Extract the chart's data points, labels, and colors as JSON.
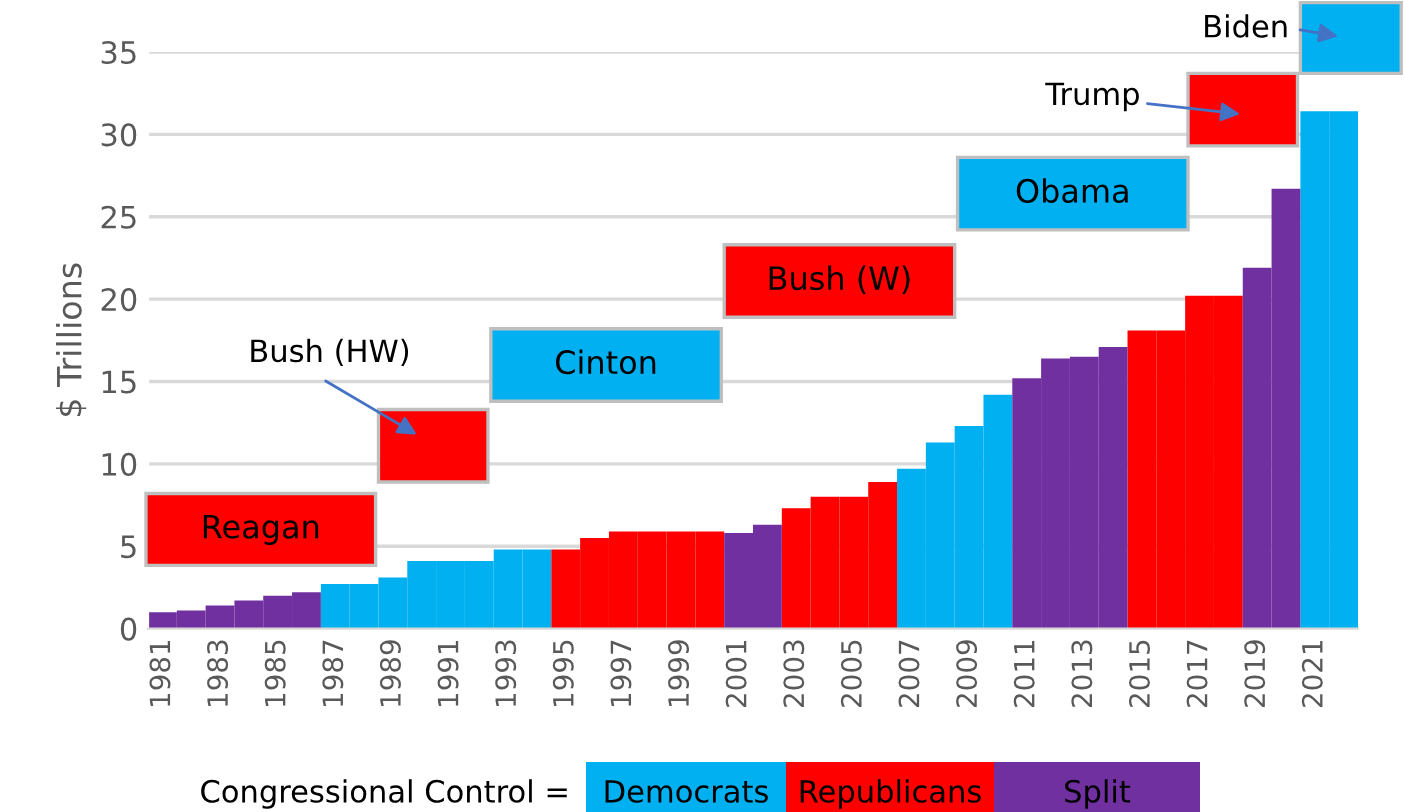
{
  "chart_data": {
    "type": "bar",
    "ylabel": "$ Trillions",
    "categories": [
      "1981",
      null,
      "1983",
      null,
      "1985",
      null,
      "1987",
      null,
      "1989",
      null,
      "1991",
      null,
      "1993",
      null,
      "1995",
      null,
      "1997",
      null,
      "1999",
      null,
      "2001",
      null,
      "2003",
      null,
      "2005",
      null,
      "2007",
      null,
      "2009",
      null,
      "2011",
      null,
      "2013",
      null,
      "2015",
      null,
      "2017",
      null,
      "2019",
      null,
      "2021",
      null
    ],
    "series": [
      {
        "name": "Democrats",
        "color": "#00b0f0",
        "values": [
          null,
          null,
          null,
          null,
          null,
          null,
          2.7,
          2.7,
          3.1,
          4.1,
          4.1,
          4.1,
          4.8,
          4.8,
          null,
          null,
          null,
          null,
          null,
          null,
          null,
          null,
          null,
          null,
          null,
          null,
          9.7,
          11.3,
          12.3,
          14.2,
          null,
          null,
          null,
          null,
          null,
          null,
          null,
          null,
          null,
          null,
          31.4,
          31.4
        ]
      },
      {
        "name": "Republicans",
        "color": "#ff0000",
        "values": [
          null,
          null,
          null,
          null,
          null,
          null,
          null,
          null,
          null,
          null,
          null,
          null,
          null,
          null,
          4.8,
          5.5,
          5.9,
          5.9,
          5.9,
          5.9,
          null,
          null,
          7.3,
          8.0,
          8.0,
          8.9,
          null,
          null,
          null,
          null,
          null,
          null,
          null,
          null,
          18.1,
          18.1,
          20.2,
          20.2,
          null,
          null,
          null,
          null
        ]
      },
      {
        "name": "Split",
        "color": "#7030a0",
        "values": [
          1.0,
          1.1,
          1.4,
          1.7,
          2.0,
          2.2,
          null,
          null,
          null,
          null,
          null,
          null,
          null,
          null,
          null,
          null,
          null,
          null,
          null,
          null,
          5.8,
          6.3,
          null,
          null,
          null,
          null,
          null,
          null,
          null,
          null,
          15.2,
          16.4,
          16.5,
          17.1,
          null,
          null,
          null,
          null,
          21.9,
          26.7,
          null,
          null
        ]
      }
    ],
    "ylim": [
      0,
      35
    ],
    "yticks": [
      0,
      5,
      10,
      15,
      20,
      25,
      30,
      35
    ],
    "grid": "y",
    "legend": "bottom",
    "legend_title": "Congressional Control =",
    "annotations": [
      "Reagan",
      "Bush (HW)",
      "Cinton",
      "Bush (W)",
      "Obama",
      "Trump",
      "Biden"
    ]
  }
}
